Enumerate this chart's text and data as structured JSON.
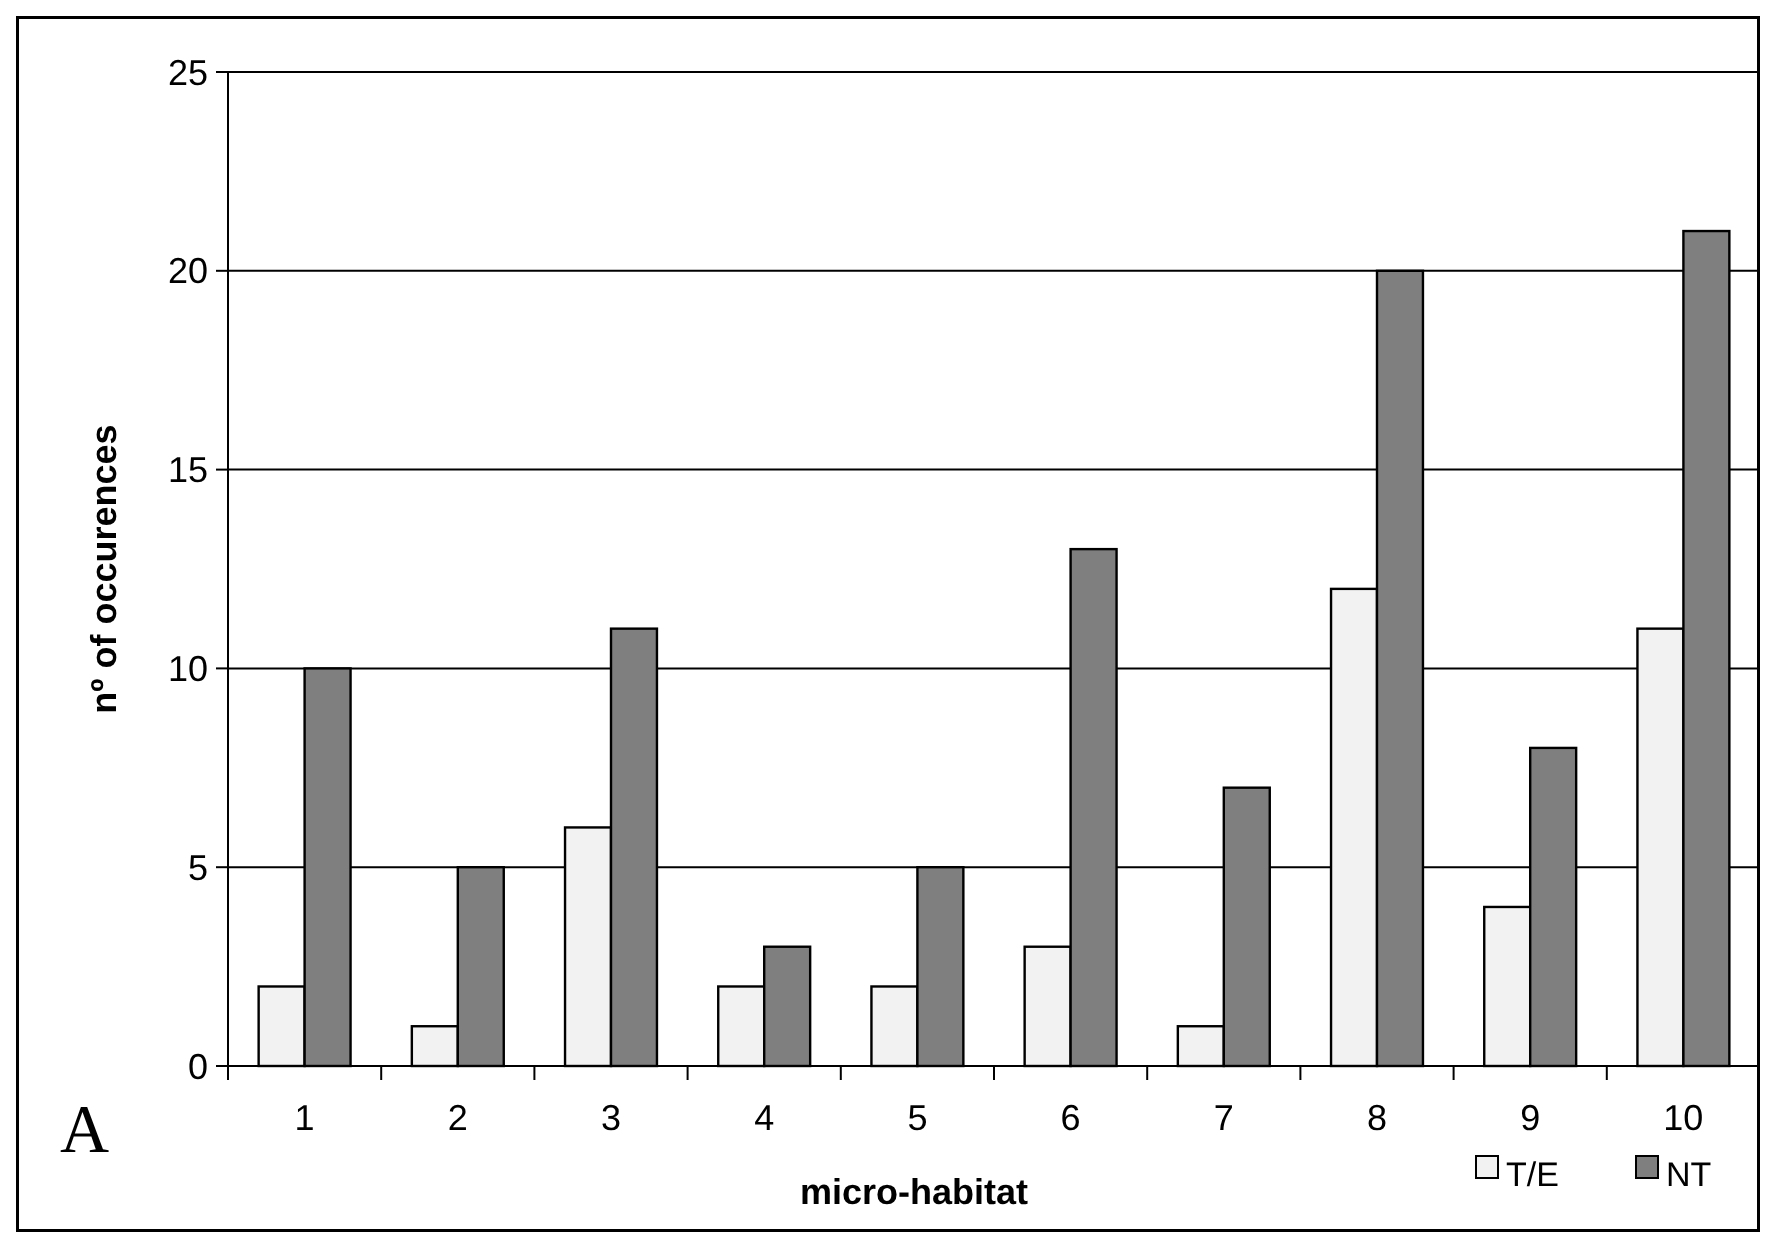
{
  "chart_data": {
    "type": "bar",
    "xlabel": "micro-habitat",
    "ylabel": "nº of occurences",
    "categories": [
      "1",
      "2",
      "3",
      "4",
      "5",
      "6",
      "7",
      "8",
      "9",
      "10"
    ],
    "series": [
      {
        "name": "T/E",
        "color": "#f2f2f2",
        "values": [
          2,
          1,
          6,
          2,
          2,
          3,
          1,
          12,
          4,
          11
        ]
      },
      {
        "name": "NT",
        "color": "#7f7f7f",
        "values": [
          10,
          5,
          11,
          3,
          5,
          13,
          7,
          20,
          8,
          21
        ]
      }
    ],
    "ylim": [
      0,
      25
    ],
    "yticks": [
      0,
      5,
      10,
      15,
      20,
      25
    ],
    "grid": "y",
    "legend": "bottom right",
    "annotations": [
      "A"
    ]
  }
}
